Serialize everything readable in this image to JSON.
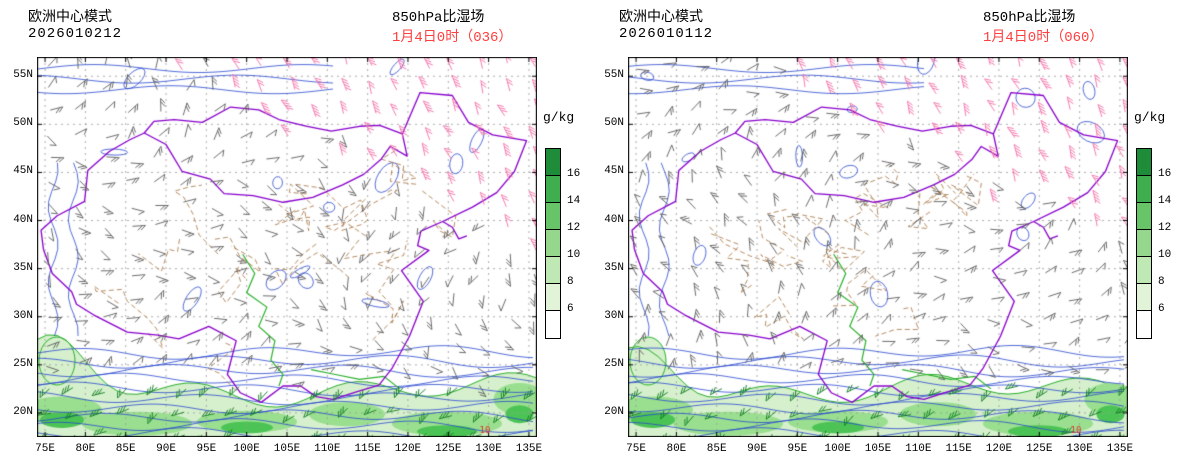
{
  "panels": [
    {
      "model": "欧洲中心模式",
      "run": "2026010212",
      "field": "850hPa比湿场",
      "valid": "1月4日0时（036）",
      "contour_label": "10"
    },
    {
      "model": "欧洲中心模式",
      "run": "2026010112",
      "field": "850hPa比湿场",
      "valid": "1月4日0时（060）",
      "contour_label": "10"
    }
  ],
  "axes": {
    "lat_labels": [
      "55N",
      "50N",
      "45N",
      "40N",
      "35N",
      "30N",
      "25N",
      "20N"
    ],
    "lon_labels": [
      "75E",
      "80E",
      "85E",
      "90E",
      "95E",
      "100E",
      "105E",
      "110E",
      "115E",
      "120E",
      "125E",
      "130E",
      "135E"
    ]
  },
  "colorbar": {
    "unit": "g/kg",
    "tick_labels": [
      "16",
      "14",
      "12",
      "10",
      "8",
      "6"
    ],
    "segment_colors": [
      "#1f8c3a",
      "#3fae4e",
      "#67c469",
      "#95d88d",
      "#c0e8b4",
      "#e2f4d8",
      "#ffffff"
    ]
  },
  "colors": {
    "valid_time_text": "#ff4040",
    "wind_barb_default": "#5b5b5b",
    "wind_barb_strong": "#f46ea8",
    "wind_barb_moist": "#0f7d1f",
    "humidity_contour_blue": "#2847cf",
    "national_border_purple": "#8800cc",
    "province_border_brown": "#a5713d",
    "green_contour": "#2ab02a",
    "contour_label_red": "#e03030"
  }
}
